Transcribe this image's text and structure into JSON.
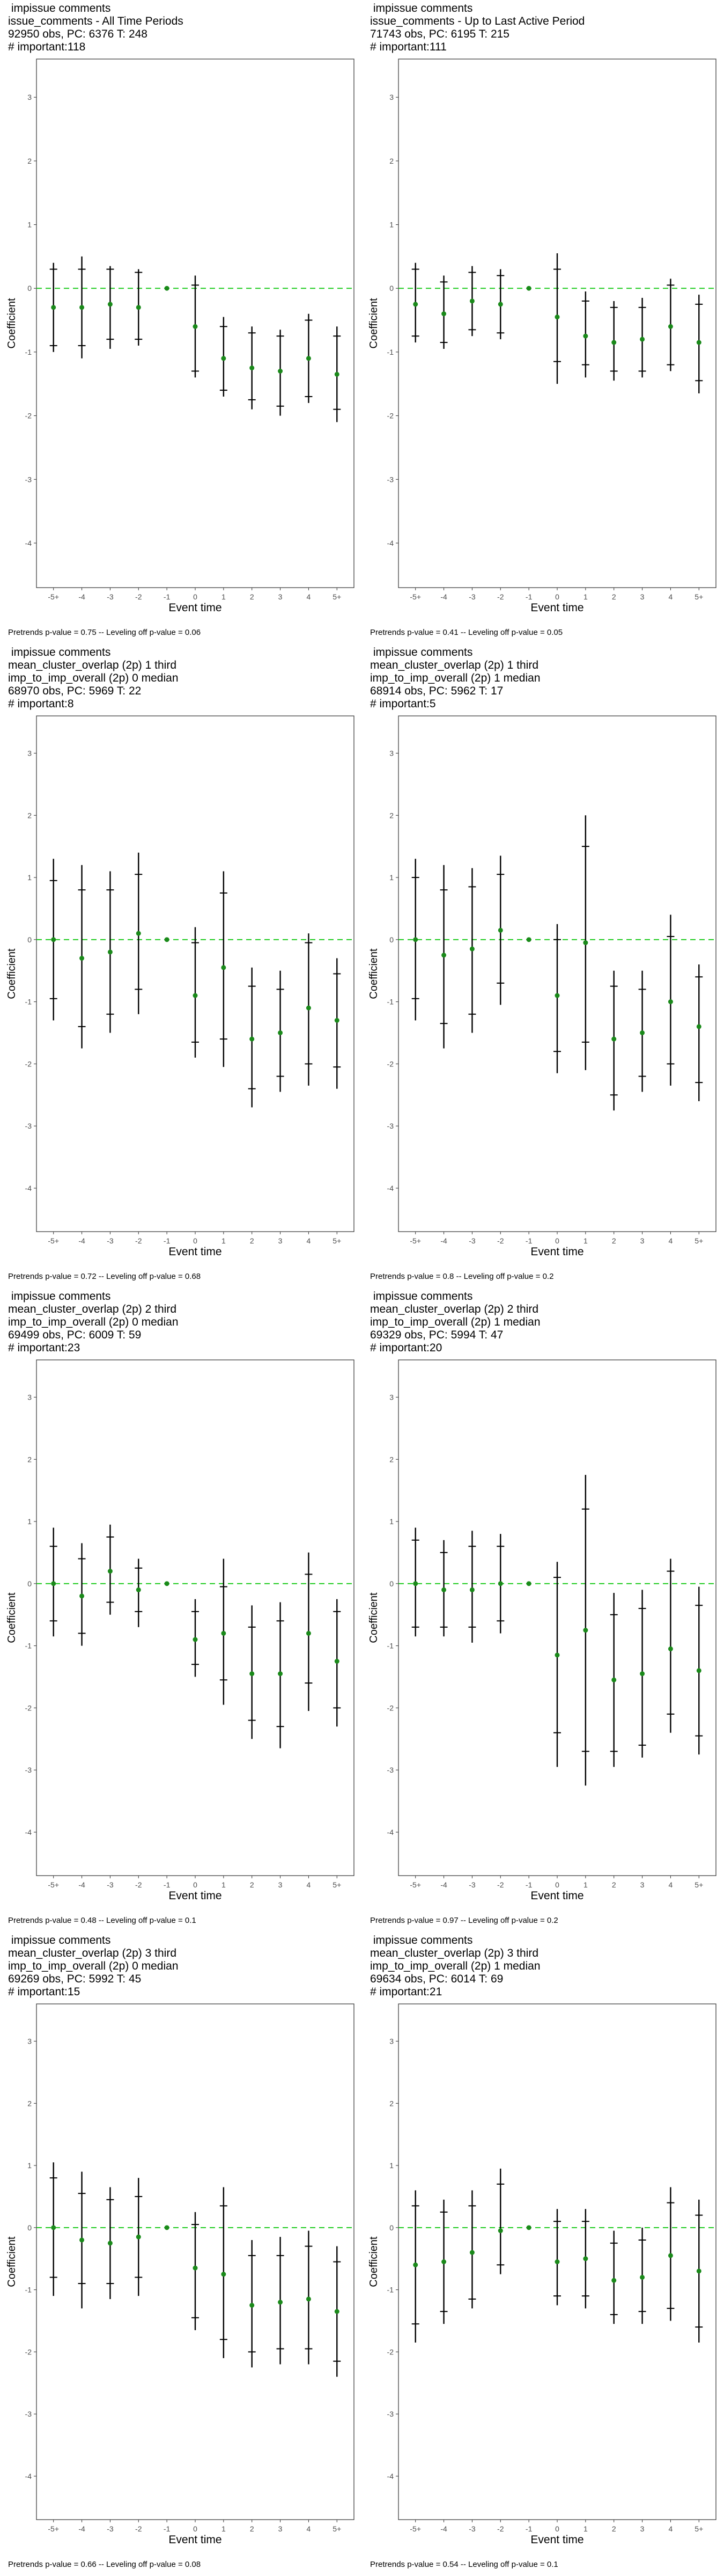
{
  "chart_data": [
    {
      "type": "scatter",
      "title_lines": [
        " impissue comments",
        "issue_comments - All Time Periods",
        "92950 obs, PC: 6376 T: 248",
        "# important:118"
      ],
      "xlabel": "Event time",
      "ylabel": "Coefficient",
      "categories": [
        "-5+",
        "-4",
        "-3",
        "-2",
        "-1",
        "0",
        "1",
        "2",
        "3",
        "4",
        "5+"
      ],
      "ylim": [
        -4.7,
        3.6
      ],
      "yticks": [
        -4,
        -3,
        -2,
        -1,
        0,
        1,
        2,
        3
      ],
      "estimate": [
        -0.3,
        -0.3,
        -0.25,
        -0.3,
        0,
        -0.6,
        -1.1,
        -1.25,
        -1.3,
        -1.1,
        -1.35
      ],
      "ci_inner": [
        [
          -0.9,
          0.3
        ],
        [
          -0.9,
          0.3
        ],
        [
          -0.8,
          0.3
        ],
        [
          -0.8,
          0.25
        ],
        [
          0,
          0
        ],
        [
          -1.3,
          0.05
        ],
        [
          -1.6,
          -0.6
        ],
        [
          -1.75,
          -0.7
        ],
        [
          -1.85,
          -0.75
        ],
        [
          -1.7,
          -0.5
        ],
        [
          -1.9,
          -0.75
        ]
      ],
      "ci_outer": [
        [
          -1.0,
          0.4
        ],
        [
          -1.1,
          0.5
        ],
        [
          -0.95,
          0.35
        ],
        [
          -0.9,
          0.3
        ],
        [
          0,
          0
        ],
        [
          -1.4,
          0.2
        ],
        [
          -1.7,
          -0.45
        ],
        [
          -1.9,
          -0.6
        ],
        [
          -2.0,
          -0.65
        ],
        [
          -1.8,
          -0.4
        ],
        [
          -2.1,
          -0.6
        ]
      ],
      "footnote": "Pretrends p-value = 0.75 -- Leveling off p-value = 0.06"
    },
    {
      "type": "scatter",
      "title_lines": [
        " impissue comments",
        "issue_comments - Up to Last Active Period",
        "71743 obs, PC: 6195 T: 215",
        "# important:111"
      ],
      "xlabel": "Event time",
      "ylabel": "Coefficient",
      "categories": [
        "-5+",
        "-4",
        "-3",
        "-2",
        "-1",
        "0",
        "1",
        "2",
        "3",
        "4",
        "5+"
      ],
      "ylim": [
        -4.7,
        3.6
      ],
      "yticks": [
        -4,
        -3,
        -2,
        -1,
        0,
        1,
        2,
        3
      ],
      "estimate": [
        -0.25,
        -0.4,
        -0.2,
        -0.25,
        0,
        -0.45,
        -0.75,
        -0.85,
        -0.8,
        -0.6,
        -0.85
      ],
      "ci_inner": [
        [
          -0.75,
          0.3
        ],
        [
          -0.85,
          0.1
        ],
        [
          -0.65,
          0.25
        ],
        [
          -0.7,
          0.2
        ],
        [
          0,
          0
        ],
        [
          -1.15,
          0.3
        ],
        [
          -1.2,
          -0.2
        ],
        [
          -1.3,
          -0.3
        ],
        [
          -1.3,
          -0.3
        ],
        [
          -1.2,
          0.05
        ],
        [
          -1.45,
          -0.25
        ]
      ],
      "ci_outer": [
        [
          -0.85,
          0.4
        ],
        [
          -0.95,
          0.2
        ],
        [
          -0.75,
          0.35
        ],
        [
          -0.8,
          0.3
        ],
        [
          0,
          0
        ],
        [
          -1.5,
          0.55
        ],
        [
          -1.4,
          -0.05
        ],
        [
          -1.45,
          -0.2
        ],
        [
          -1.4,
          -0.15
        ],
        [
          -1.3,
          0.15
        ],
        [
          -1.65,
          -0.1
        ]
      ],
      "footnote": "Pretrends p-value = 0.41 -- Leveling off p-value = 0.05"
    },
    {
      "type": "scatter",
      "title_lines": [
        " impissue comments",
        "mean_cluster_overlap (2p) 1 third",
        "imp_to_imp_overall (2p) 0 median",
        "68970 obs, PC: 5969 T: 22",
        "# important:8"
      ],
      "xlabel": "Event time",
      "ylabel": "Coefficient",
      "categories": [
        "-5+",
        "-4",
        "-3",
        "-2",
        "-1",
        "0",
        "1",
        "2",
        "3",
        "4",
        "5+"
      ],
      "ylim": [
        -4.7,
        3.6
      ],
      "yticks": [
        -4,
        -3,
        -2,
        -1,
        0,
        1,
        2,
        3
      ],
      "estimate": [
        0,
        -0.3,
        -0.2,
        0.1,
        0,
        -0.9,
        -0.45,
        -1.6,
        -1.5,
        -1.1,
        -1.3
      ],
      "ci_inner": [
        [
          -0.95,
          0.95
        ],
        [
          -1.4,
          0.8
        ],
        [
          -1.2,
          0.8
        ],
        [
          -0.8,
          1.05
        ],
        [
          0,
          0
        ],
        [
          -1.65,
          -0.05
        ],
        [
          -1.6,
          0.75
        ],
        [
          -2.4,
          -0.75
        ],
        [
          -2.2,
          -0.8
        ],
        [
          -2.0,
          -0.05
        ],
        [
          -2.05,
          -0.55
        ]
      ],
      "ci_outer": [
        [
          -1.3,
          1.3
        ],
        [
          -1.75,
          1.2
        ],
        [
          -1.5,
          1.1
        ],
        [
          -1.2,
          1.4
        ],
        [
          0,
          0
        ],
        [
          -1.9,
          0.2
        ],
        [
          -2.05,
          1.1
        ],
        [
          -2.7,
          -0.45
        ],
        [
          -2.45,
          -0.5
        ],
        [
          -2.35,
          0.1
        ],
        [
          -2.4,
          -0.3
        ]
      ],
      "footnote": "Pretrends p-value = 0.72 -- Leveling off p-value = 0.68"
    },
    {
      "type": "scatter",
      "title_lines": [
        " impissue comments",
        "mean_cluster_overlap (2p) 1 third",
        "imp_to_imp_overall (2p) 1 median",
        "68914 obs, PC: 5962 T: 17",
        "# important:5"
      ],
      "xlabel": "Event time",
      "ylabel": "Coefficient",
      "categories": [
        "-5+",
        "-4",
        "-3",
        "-2",
        "-1",
        "0",
        "1",
        "2",
        "3",
        "4",
        "5+"
      ],
      "ylim": [
        -4.7,
        3.6
      ],
      "yticks": [
        -4,
        -3,
        -2,
        -1,
        0,
        1,
        2,
        3
      ],
      "estimate": [
        0,
        -0.25,
        -0.15,
        0.15,
        0,
        -0.9,
        -0.05,
        -1.6,
        -1.5,
        -1.0,
        -1.4
      ],
      "ci_inner": [
        [
          -0.95,
          1.0
        ],
        [
          -1.35,
          0.8
        ],
        [
          -1.2,
          0.85
        ],
        [
          -0.7,
          1.05
        ],
        [
          0,
          0
        ],
        [
          -1.8,
          0.0
        ],
        [
          -1.65,
          1.5
        ],
        [
          -2.5,
          -0.75
        ],
        [
          -2.2,
          -0.8
        ],
        [
          -2.0,
          0.05
        ],
        [
          -2.3,
          -0.6
        ]
      ],
      "ci_outer": [
        [
          -1.3,
          1.3
        ],
        [
          -1.75,
          1.2
        ],
        [
          -1.5,
          1.15
        ],
        [
          -1.05,
          1.35
        ],
        [
          0,
          0
        ],
        [
          -2.15,
          0.25
        ],
        [
          -2.1,
          2.0
        ],
        [
          -2.75,
          -0.5
        ],
        [
          -2.45,
          -0.5
        ],
        [
          -2.35,
          0.4
        ],
        [
          -2.6,
          -0.4
        ]
      ],
      "footnote": "Pretrends p-value = 0.8 -- Leveling off p-value = 0.2"
    },
    {
      "type": "scatter",
      "title_lines": [
        " impissue comments",
        "mean_cluster_overlap (2p) 2 third",
        "imp_to_imp_overall (2p) 0 median",
        "69499 obs, PC: 6009 T: 59",
        "# important:23"
      ],
      "xlabel": "Event time",
      "ylabel": "Coefficient",
      "categories": [
        "-5+",
        "-4",
        "-3",
        "-2",
        "-1",
        "0",
        "1",
        "2",
        "3",
        "4",
        "5+"
      ],
      "ylim": [
        -4.7,
        3.6
      ],
      "yticks": [
        -4,
        -3,
        -2,
        -1,
        0,
        1,
        2,
        3
      ],
      "estimate": [
        0,
        -0.2,
        0.2,
        -0.1,
        0,
        -0.9,
        -0.8,
        -1.45,
        -1.45,
        -0.8,
        -1.25
      ],
      "ci_inner": [
        [
          -0.6,
          0.6
        ],
        [
          -0.8,
          0.4
        ],
        [
          -0.3,
          0.75
        ],
        [
          -0.45,
          0.25
        ],
        [
          0,
          0
        ],
        [
          -1.3,
          -0.45
        ],
        [
          -1.55,
          -0.05
        ],
        [
          -2.2,
          -0.7
        ],
        [
          -2.3,
          -0.6
        ],
        [
          -1.6,
          0.15
        ],
        [
          -2.0,
          -0.45
        ]
      ],
      "ci_outer": [
        [
          -0.85,
          0.9
        ],
        [
          -1.0,
          0.65
        ],
        [
          -0.5,
          0.95
        ],
        [
          -0.7,
          0.4
        ],
        [
          0,
          0
        ],
        [
          -1.5,
          -0.25
        ],
        [
          -1.95,
          0.4
        ],
        [
          -2.5,
          -0.35
        ],
        [
          -2.65,
          -0.3
        ],
        [
          -2.05,
          0.5
        ],
        [
          -2.3,
          -0.25
        ]
      ],
      "footnote": "Pretrends p-value = 0.48 -- Leveling off p-value = 0.1"
    },
    {
      "type": "scatter",
      "title_lines": [
        " impissue comments",
        "mean_cluster_overlap (2p) 2 third",
        "imp_to_imp_overall (2p) 1 median",
        "69329 obs, PC: 5994 T: 47",
        "# important:20"
      ],
      "xlabel": "Event time",
      "ylabel": "Coefficient",
      "categories": [
        "-5+",
        "-4",
        "-3",
        "-2",
        "-1",
        "0",
        "1",
        "2",
        "3",
        "4",
        "5+"
      ],
      "ylim": [
        -4.7,
        3.6
      ],
      "yticks": [
        -4,
        -3,
        -2,
        -1,
        0,
        1,
        2,
        3
      ],
      "estimate": [
        0,
        -0.1,
        -0.1,
        0,
        0,
        -1.15,
        -0.75,
        -1.55,
        -1.45,
        -1.05,
        -1.4
      ],
      "ci_inner": [
        [
          -0.7,
          0.7
        ],
        [
          -0.7,
          0.5
        ],
        [
          -0.7,
          0.6
        ],
        [
          -0.6,
          0.6
        ],
        [
          0,
          0
        ],
        [
          -2.4,
          0.1
        ],
        [
          -2.7,
          1.2
        ],
        [
          -2.7,
          -0.5
        ],
        [
          -2.6,
          -0.4
        ],
        [
          -2.1,
          0.2
        ],
        [
          -2.45,
          -0.35
        ]
      ],
      "ci_outer": [
        [
          -0.85,
          0.9
        ],
        [
          -0.85,
          0.7
        ],
        [
          -0.95,
          0.85
        ],
        [
          -0.8,
          0.8
        ],
        [
          0,
          0
        ],
        [
          -2.95,
          0.35
        ],
        [
          -3.25,
          1.75
        ],
        [
          -2.95,
          -0.15
        ],
        [
          -2.8,
          -0.1
        ],
        [
          -2.4,
          0.4
        ],
        [
          -2.75,
          -0.05
        ]
      ],
      "footnote": "Pretrends p-value = 0.97 -- Leveling off p-value = 0.2"
    },
    {
      "type": "scatter",
      "title_lines": [
        " impissue comments",
        "mean_cluster_overlap (2p) 3 third",
        "imp_to_imp_overall (2p) 0 median",
        "69269 obs, PC: 5992 T: 45",
        "# important:15"
      ],
      "xlabel": "Event time",
      "ylabel": "Coefficient",
      "categories": [
        "-5+",
        "-4",
        "-3",
        "-2",
        "-1",
        "0",
        "1",
        "2",
        "3",
        "4",
        "5+"
      ],
      "ylim": [
        -4.7,
        3.6
      ],
      "yticks": [
        -4,
        -3,
        -2,
        -1,
        0,
        1,
        2,
        3
      ],
      "estimate": [
        0,
        -0.2,
        -0.25,
        -0.15,
        0,
        -0.65,
        -0.75,
        -1.25,
        -1.2,
        -1.15,
        -1.35
      ],
      "ci_inner": [
        [
          -0.8,
          0.8
        ],
        [
          -0.9,
          0.55
        ],
        [
          -0.9,
          0.45
        ],
        [
          -0.8,
          0.5
        ],
        [
          0,
          0
        ],
        [
          -1.45,
          0.05
        ],
        [
          -1.8,
          0.35
        ],
        [
          -2.0,
          -0.45
        ],
        [
          -1.95,
          -0.45
        ],
        [
          -1.95,
          -0.3
        ],
        [
          -2.15,
          -0.55
        ]
      ],
      "ci_outer": [
        [
          -1.1,
          1.05
        ],
        [
          -1.3,
          0.9
        ],
        [
          -1.15,
          0.65
        ],
        [
          -1.1,
          0.8
        ],
        [
          0,
          0
        ],
        [
          -1.65,
          0.25
        ],
        [
          -2.1,
          0.65
        ],
        [
          -2.25,
          -0.2
        ],
        [
          -2.2,
          -0.15
        ],
        [
          -2.2,
          -0.05
        ],
        [
          -2.4,
          -0.3
        ]
      ],
      "footnote": "Pretrends p-value = 0.66 -- Leveling off p-value = 0.08"
    },
    {
      "type": "scatter",
      "title_lines": [
        " impissue comments",
        "mean_cluster_overlap (2p) 3 third",
        "imp_to_imp_overall (2p) 1 median",
        "69634 obs, PC: 6014 T: 69",
        "# important:21"
      ],
      "xlabel": "Event time",
      "ylabel": "Coefficient",
      "categories": [
        "-5+",
        "-4",
        "-3",
        "-2",
        "-1",
        "0",
        "1",
        "2",
        "3",
        "4",
        "5+"
      ],
      "ylim": [
        -4.7,
        3.6
      ],
      "yticks": [
        -4,
        -3,
        -2,
        -1,
        0,
        1,
        2,
        3
      ],
      "estimate": [
        -0.6,
        -0.55,
        -0.4,
        -0.05,
        0,
        -0.55,
        -0.5,
        -0.85,
        -0.8,
        -0.45,
        -0.7
      ],
      "ci_inner": [
        [
          -1.55,
          0.35
        ],
        [
          -1.35,
          0.25
        ],
        [
          -1.15,
          0.35
        ],
        [
          -0.6,
          0.7
        ],
        [
          0,
          0
        ],
        [
          -1.1,
          0.1
        ],
        [
          -1.1,
          0.1
        ],
        [
          -1.4,
          -0.25
        ],
        [
          -1.35,
          -0.2
        ],
        [
          -1.3,
          0.4
        ],
        [
          -1.6,
          0.2
        ]
      ],
      "ci_outer": [
        [
          -1.85,
          0.6
        ],
        [
          -1.55,
          0.45
        ],
        [
          -1.3,
          0.6
        ],
        [
          -0.75,
          0.95
        ],
        [
          0,
          0
        ],
        [
          -1.25,
          0.3
        ],
        [
          -1.3,
          0.3
        ],
        [
          -1.55,
          -0.05
        ],
        [
          -1.55,
          0.0
        ],
        [
          -1.5,
          0.65
        ],
        [
          -1.85,
          0.45
        ]
      ],
      "footnote": "Pretrends p-value = 0.54 -- Leveling off p-value = 0.1"
    }
  ],
  "colors": {
    "point": "#1a8a1a",
    "zero_line": "#22cc22",
    "bar": "#000000",
    "axis_text": "#4d4d4d"
  }
}
